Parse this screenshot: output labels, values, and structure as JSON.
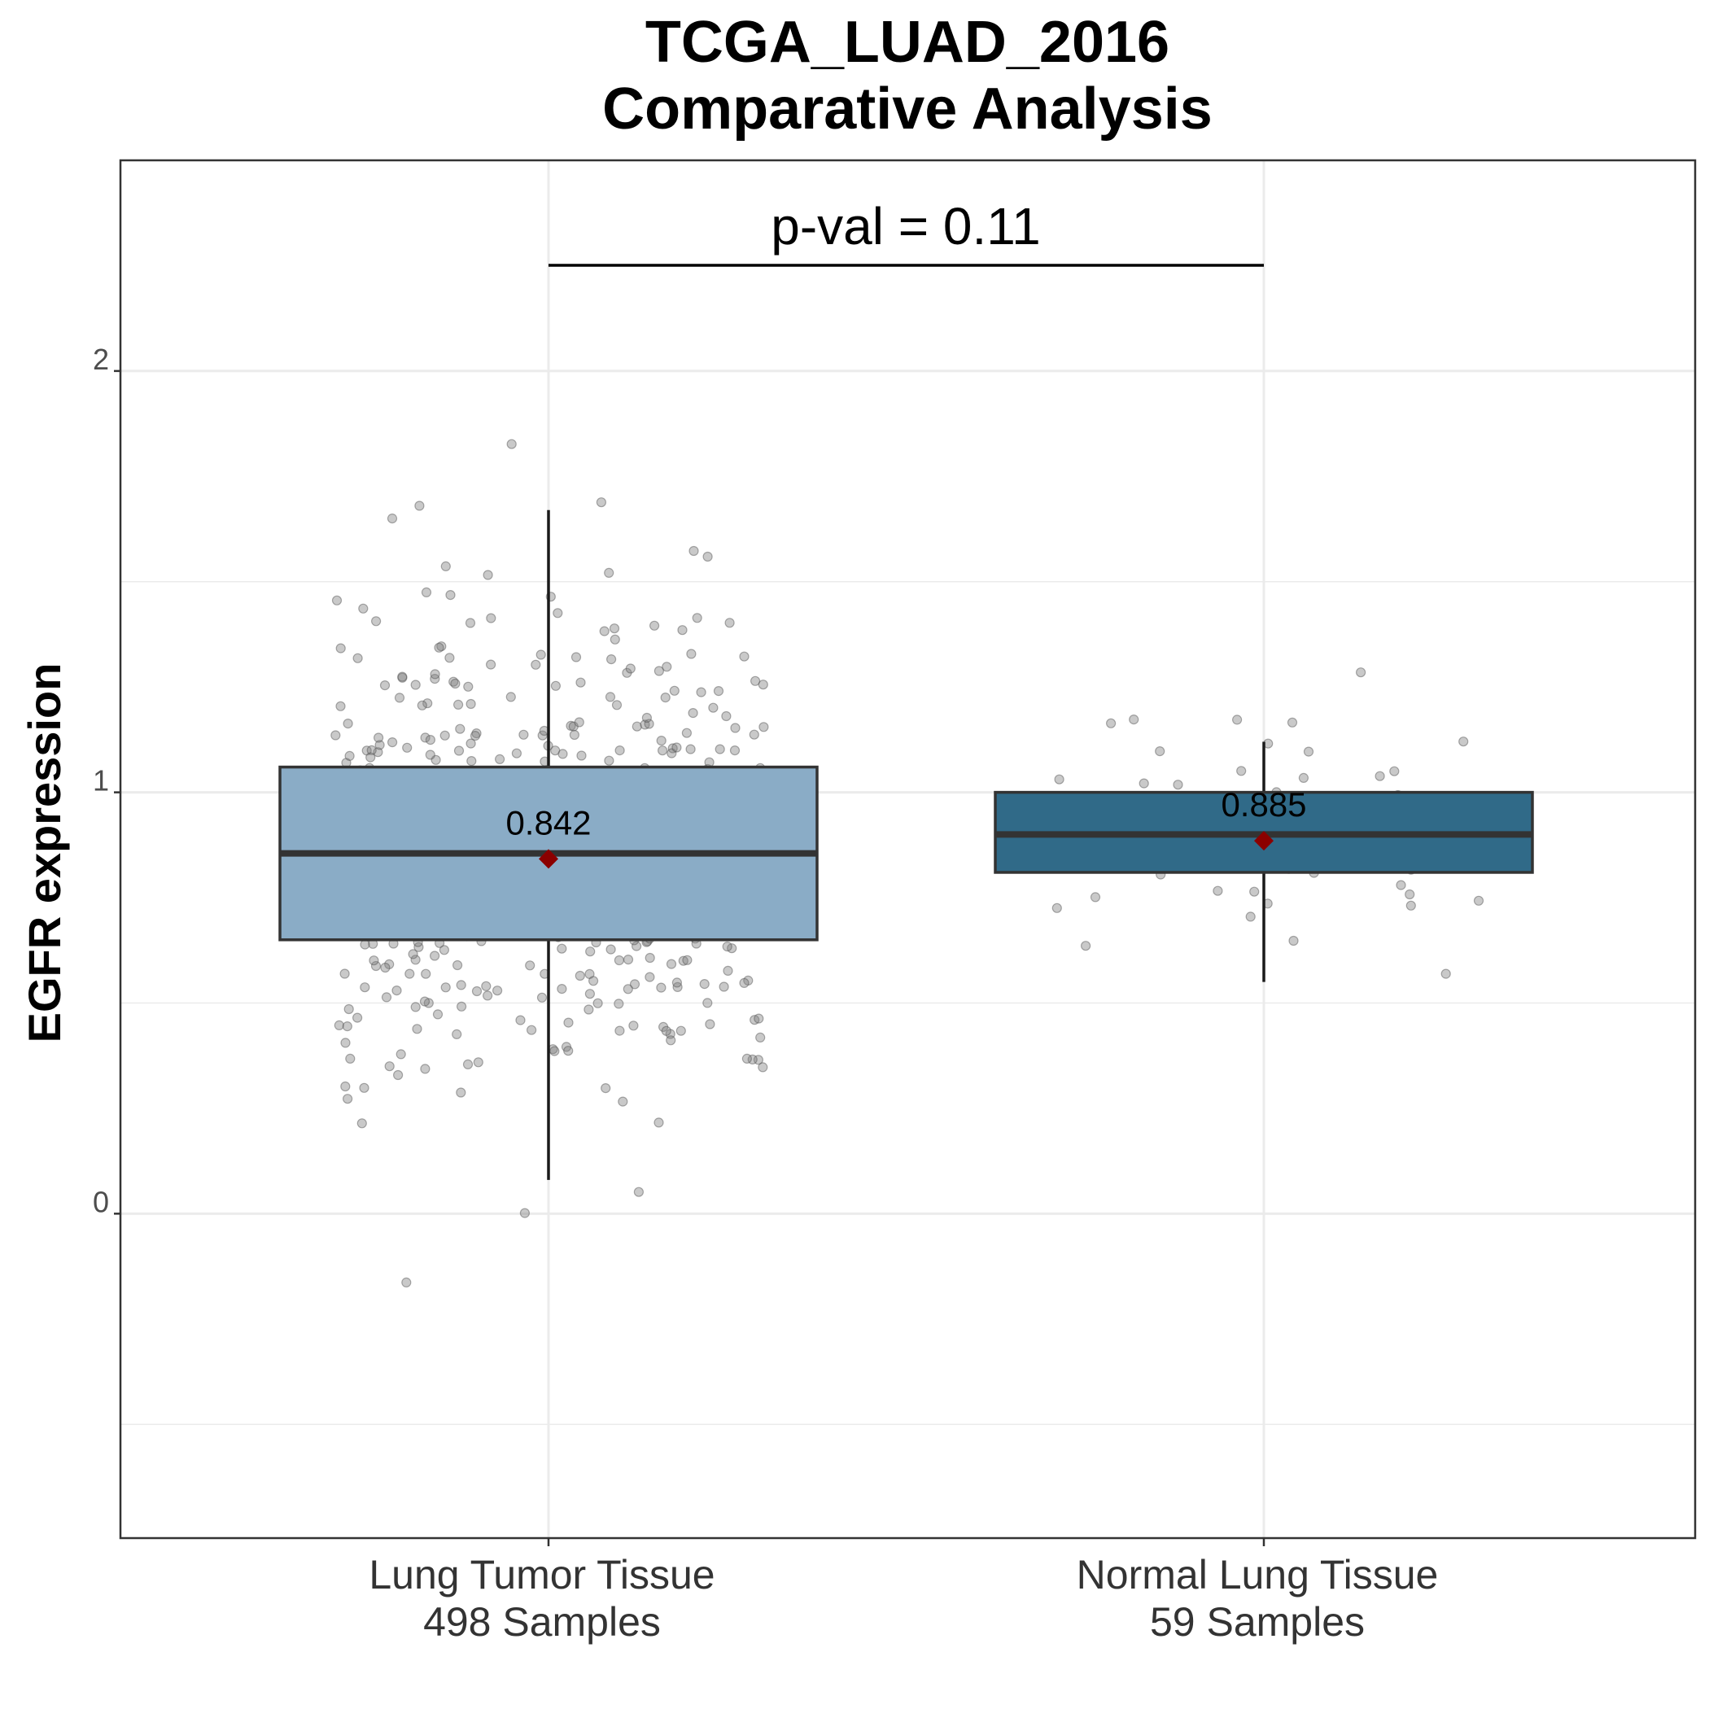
{
  "chart_data": {
    "type": "box",
    "title": [
      "TCGA_LUAD_2016",
      "Comparative Analysis"
    ],
    "xlabel": "",
    "ylabel": "EGFR expression",
    "ylim": [
      -0.77,
      2.5
    ],
    "yticks": [
      0,
      1,
      2
    ],
    "ytick_labels": [
      "0",
      "1",
      "2"
    ],
    "grid": true,
    "annotation": "p-val = 0.11",
    "colors": {
      "mean": "#8b0000",
      "points": "#555555",
      "grid": "#ebebeb",
      "panel_border": "#333333"
    },
    "groups": [
      {
        "label": [
          "Lung Tumor Tissue",
          "498  Samples"
        ],
        "n": 498,
        "color": "#8aacc6",
        "whisker_low": 0.08,
        "q1": 0.65,
        "median": 0.855,
        "q3": 1.06,
        "whisker_high": 1.67,
        "mean": 0.842,
        "mean_label": "0.842"
      },
      {
        "label": [
          "Normal Lung Tissue",
          "59  Samples"
        ],
        "n": 59,
        "color": "#306a88",
        "whisker_low": 0.55,
        "q1": 0.81,
        "median": 0.9,
        "q3": 1.0,
        "whisker_high": 1.12,
        "mean": 0.885,
        "mean_label": "0.885"
      }
    ]
  }
}
